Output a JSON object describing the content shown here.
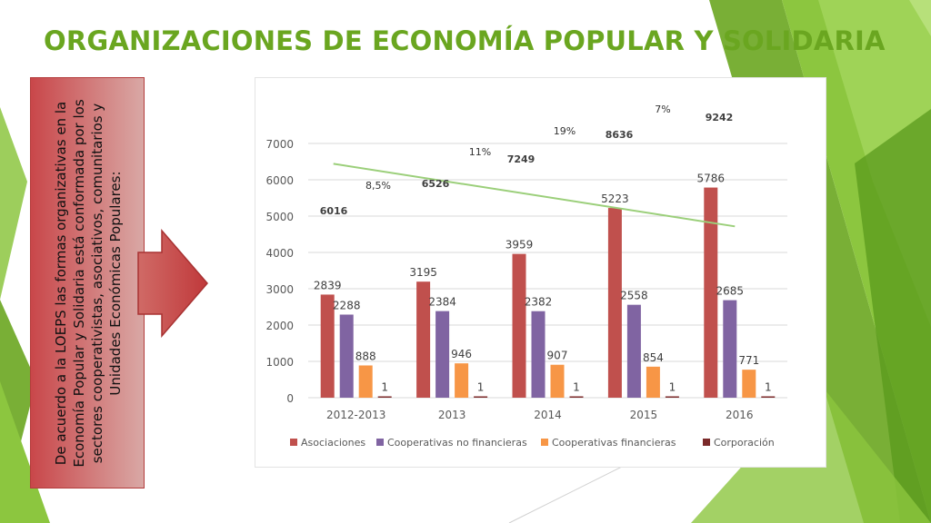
{
  "slide": {
    "title": "ORGANIZACIONES DE ECONOMÍA POPULAR Y SOLIDARIA",
    "body_text": "De acuerdo a la LOEPS las formas organizativas en la Economía Popular y Solidaria está conformada por los sectores cooperativistas, asociativos, comunitarios y Unidades Económicas Populares:"
  },
  "colors": {
    "accent_green": "#6aa620",
    "box_red": "#c9474a"
  },
  "chart_data": {
    "type": "bar",
    "categories": [
      "2012-2013",
      "2013",
      "2014",
      "2015",
      "2016"
    ],
    "ylim": [
      0,
      7000
    ],
    "yticks": [
      0,
      1000,
      2000,
      3000,
      4000,
      5000,
      6000,
      7000
    ],
    "grid": true,
    "legend_position": "bottom",
    "series": [
      {
        "name": "Asociaciones",
        "color": "#c0504d",
        "values": [
          2839,
          3195,
          3959,
          5223,
          5786
        ]
      },
      {
        "name": "Cooperativas no financieras",
        "color": "#8064a2",
        "values": [
          2288,
          2384,
          2382,
          2558,
          2685
        ]
      },
      {
        "name": "Cooperativas financieras",
        "color": "#f79646",
        "values": [
          888,
          946,
          907,
          854,
          771
        ]
      },
      {
        "name": "Corporación",
        "color": "#7b2a2a",
        "values": [
          1,
          1,
          1,
          1,
          1
        ]
      }
    ],
    "totals": {
      "labels": [
        "6016",
        "6526",
        "7249",
        "8636",
        "9242"
      ],
      "trend_color": "#9bcf7a"
    },
    "growth_labels": [
      "8,5%",
      "11%",
      "19%",
      "7%"
    ]
  }
}
